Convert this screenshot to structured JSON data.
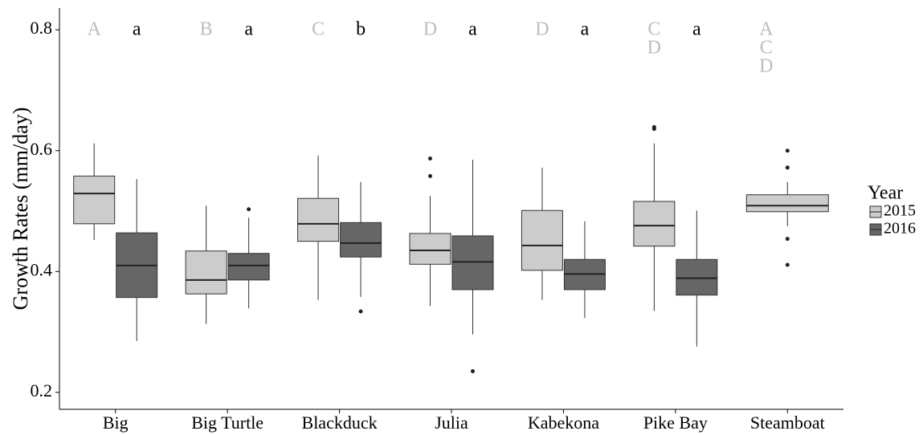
{
  "chart_data": {
    "type": "box",
    "y_label": "Growth Rates (mm/day)",
    "categories": [
      "Big",
      "Big Turtle",
      "Blackduck",
      "Julia",
      "Kabekona",
      "Pike Bay",
      "Steamboat"
    ],
    "ylim": [
      0.172,
      0.836
    ],
    "yticks": [
      0.2,
      0.4,
      0.6,
      0.8
    ],
    "grid": false,
    "legend_title": "Year",
    "legend": "right",
    "series": [
      {
        "name": "2015",
        "color": "#cccccc",
        "letter_color": "#bdbdbd",
        "boxes": [
          {
            "min": 0.452,
            "q1": 0.479,
            "median": 0.529,
            "q3": 0.558,
            "max": 0.612,
            "outliers": []
          },
          {
            "min": 0.313,
            "q1": 0.363,
            "median": 0.386,
            "q3": 0.434,
            "max": 0.509,
            "outliers": []
          },
          {
            "min": 0.353,
            "q1": 0.45,
            "median": 0.479,
            "q3": 0.521,
            "max": 0.592,
            "outliers": []
          },
          {
            "min": 0.343,
            "q1": 0.412,
            "median": 0.435,
            "q3": 0.463,
            "max": 0.525,
            "outliers": [
              0.587,
              0.558
            ]
          },
          {
            "min": 0.353,
            "q1": 0.402,
            "median": 0.443,
            "q3": 0.501,
            "max": 0.572,
            "outliers": []
          },
          {
            "min": 0.335,
            "q1": 0.442,
            "median": 0.476,
            "q3": 0.516,
            "max": 0.612,
            "outliers": [
              0.639,
              0.636
            ]
          },
          {
            "min": 0.475,
            "q1": 0.499,
            "median": 0.509,
            "q3": 0.527,
            "max": 0.548,
            "outliers": [
              0.6,
              0.572,
              0.454,
              0.411
            ]
          }
        ],
        "letters": [
          [
            "A"
          ],
          [
            "B"
          ],
          [
            "C"
          ],
          [
            "D"
          ],
          [
            "D"
          ],
          [
            "C",
            "D"
          ],
          [
            "A",
            "C",
            "D"
          ]
        ]
      },
      {
        "name": "2016",
        "color": "#666666",
        "letter_color": "#000000",
        "boxes": [
          {
            "min": 0.285,
            "q1": 0.357,
            "median": 0.41,
            "q3": 0.464,
            "max": 0.553,
            "outliers": []
          },
          {
            "min": 0.339,
            "q1": 0.386,
            "median": 0.41,
            "q3": 0.43,
            "max": 0.489,
            "outliers": [
              0.503
            ]
          },
          {
            "min": 0.358,
            "q1": 0.424,
            "median": 0.447,
            "q3": 0.481,
            "max": 0.548,
            "outliers": [
              0.334
            ]
          },
          {
            "min": 0.296,
            "q1": 0.37,
            "median": 0.416,
            "q3": 0.459,
            "max": 0.585,
            "outliers": [
              0.235
            ]
          },
          {
            "min": 0.323,
            "q1": 0.37,
            "median": 0.396,
            "q3": 0.42,
            "max": 0.483,
            "outliers": []
          },
          {
            "min": 0.276,
            "q1": 0.361,
            "median": 0.389,
            "q3": 0.42,
            "max": 0.501,
            "outliers": []
          },
          null
        ],
        "letters": [
          [
            "a"
          ],
          [
            "a"
          ],
          [
            "b"
          ],
          [
            "a"
          ],
          [
            "a"
          ],
          [
            "a"
          ],
          null
        ]
      }
    ]
  }
}
